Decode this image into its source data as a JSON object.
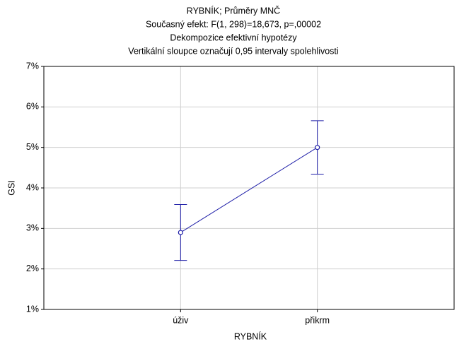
{
  "chart_data": {
    "type": "line",
    "title": "RYBNÍK; Průměry MNČ",
    "subtitles": [
      "Současný efekt: F(1, 298)=18,673, p=,00002",
      "Dekompozice efektivní hypotézy",
      "Vertikální sloupce označují 0,95 intervaly spolehlivosti"
    ],
    "x_label": "RYBNÍK",
    "y_label": "GSI",
    "categories": [
      "úživ",
      "přikrm"
    ],
    "values": [
      2.9,
      5.0
    ],
    "errors": [
      0.69,
      0.66
    ],
    "color": "#1f1fa8",
    "ylim": [
      1,
      7
    ],
    "yticks": [
      {
        "value": 1,
        "label": "1%"
      },
      {
        "value": 2,
        "label": "2%"
      },
      {
        "value": 3,
        "label": "3%"
      },
      {
        "value": 4,
        "label": "4%"
      },
      {
        "value": 5,
        "label": "5%"
      },
      {
        "value": 6,
        "label": "6%"
      },
      {
        "value": 7,
        "label": "7%"
      }
    ],
    "grid": true
  }
}
